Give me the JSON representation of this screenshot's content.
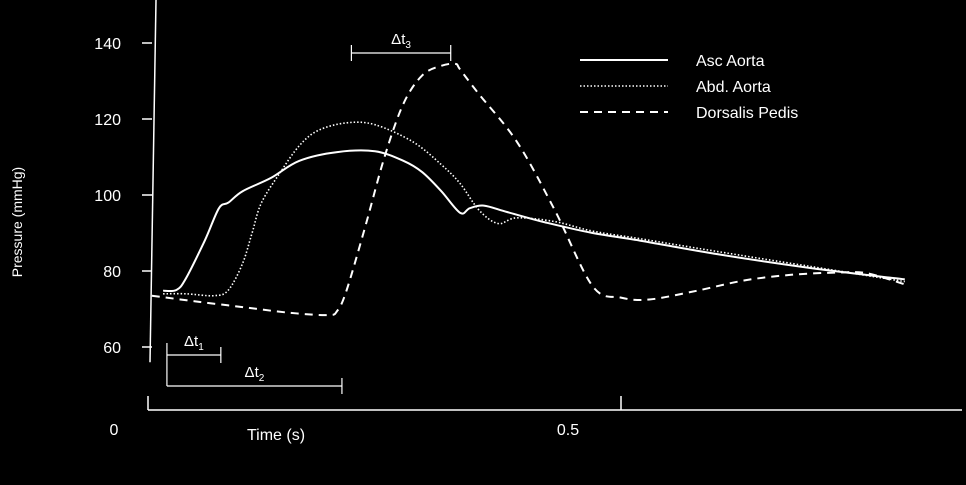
{
  "chart_data": {
    "type": "line",
    "title": "",
    "xlabel": "Time (s)",
    "ylabel": "Pressure (mmHg)",
    "xlim": [
      0,
      0.84
    ],
    "ylim": [
      56,
      155
    ],
    "x_ticks": [
      {
        "value": 0,
        "label": "0"
      },
      {
        "value": 0.5,
        "label": "0.5"
      }
    ],
    "y_ticks": [
      {
        "value": 60,
        "label": "60"
      },
      {
        "value": 80,
        "label": "80"
      },
      {
        "value": 100,
        "label": "100"
      },
      {
        "value": 120,
        "label": "120"
      },
      {
        "value": 140,
        "label": "140"
      }
    ],
    "legend_position": "top-right",
    "grid": false,
    "colors": {
      "background": "#000000",
      "foreground": "#ffffff"
    },
    "series": [
      {
        "name": "Asc Aorta",
        "dash": "solid",
        "x": [
          0.016,
          0.03,
          0.04,
          0.06,
          0.075,
          0.085,
          0.1,
          0.13,
          0.16,
          0.2,
          0.24,
          0.27,
          0.29,
          0.31,
          0.33,
          0.34,
          0.355,
          0.38,
          0.42,
          0.47,
          0.52,
          0.6,
          0.7,
          0.8
        ],
        "y": [
          74.8,
          75,
          78,
          88,
          96.5,
          98,
          101,
          104.5,
          109,
          111.3,
          111.5,
          109,
          106,
          101,
          95.3,
          96.5,
          97.2,
          95.5,
          92.8,
          90,
          88,
          84.5,
          80.8,
          77.8
        ]
      },
      {
        "name": "Abd. Aorta",
        "dash": "dotted",
        "x": [
          0.016,
          0.04,
          0.07,
          0.085,
          0.1,
          0.11,
          0.12,
          0.14,
          0.16,
          0.18,
          0.21,
          0.24,
          0.28,
          0.31,
          0.33,
          0.35,
          0.37,
          0.39,
          0.43,
          0.47,
          0.52,
          0.6,
          0.7,
          0.8
        ],
        "y": [
          74,
          74,
          73.5,
          75,
          82,
          90,
          98,
          106,
          113,
          117,
          119,
          118.5,
          114,
          108,
          103,
          96,
          92.5,
          94,
          93,
          90.5,
          88.5,
          85.2,
          81.2,
          77.2
        ]
      },
      {
        "name": "Dorsalis Pedis",
        "dash": "dashed",
        "x": [
          0.004,
          0.05,
          0.1,
          0.15,
          0.19,
          0.2,
          0.21,
          0.23,
          0.25,
          0.27,
          0.29,
          0.31,
          0.325,
          0.33,
          0.35,
          0.39,
          0.43,
          0.47,
          0.5,
          0.53,
          0.58,
          0.63,
          0.68,
          0.73,
          0.76,
          0.8
        ],
        "y": [
          73.5,
          72,
          70.5,
          69,
          68.4,
          69.5,
          75,
          92,
          110,
          124,
          131.5,
          134,
          134.5,
          133,
          126.5,
          114,
          96,
          76,
          73,
          72.5,
          74.8,
          77.5,
          79,
          79.6,
          79.4,
          76.5
        ]
      }
    ],
    "annotations": [
      {
        "label": "Δt",
        "subscript": "1",
        "from_x": 0.02,
        "to_x": 0.077
      },
      {
        "label": "Δt",
        "subscript": "2",
        "from_x": 0.02,
        "to_x": 0.205
      },
      {
        "label": "Δt",
        "subscript": "3",
        "from_x": 0.215,
        "to_x": 0.32
      }
    ]
  }
}
